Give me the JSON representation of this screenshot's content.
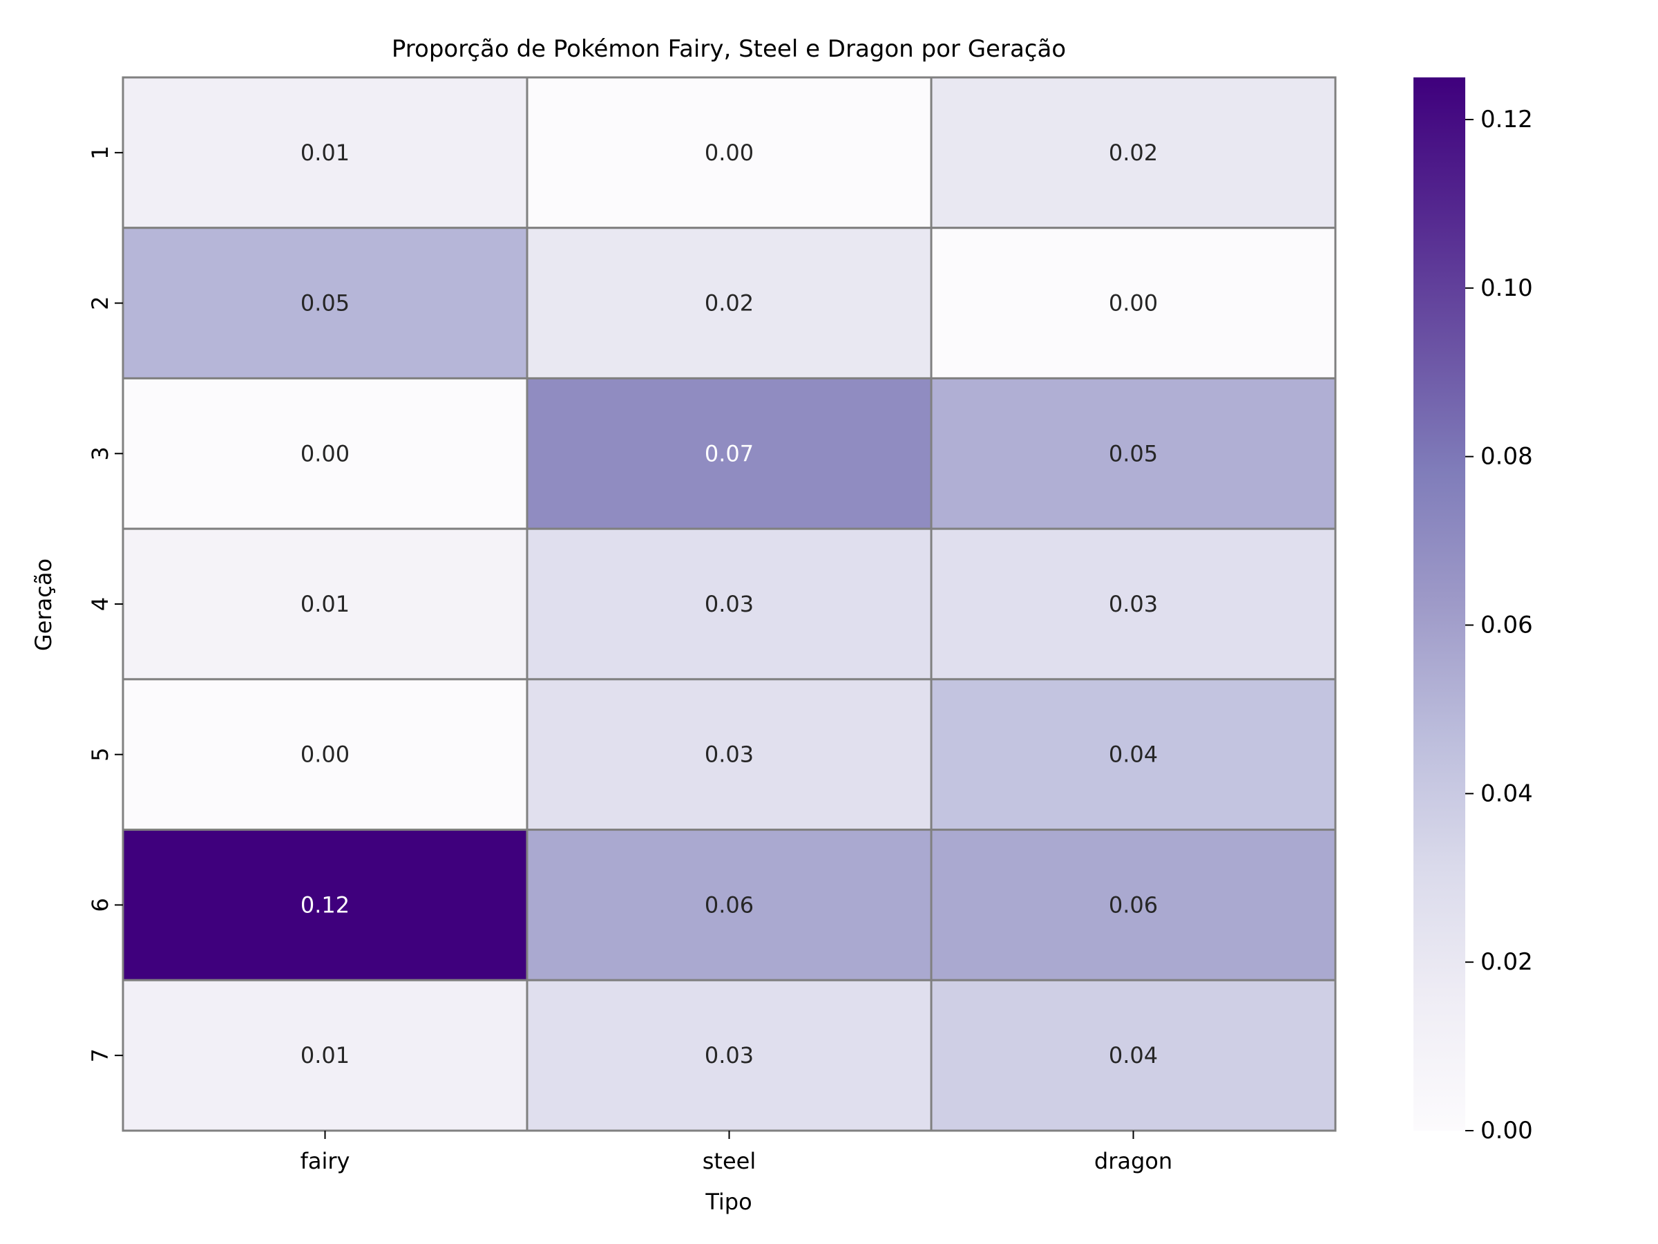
{
  "chart_data": {
    "type": "heatmap",
    "title": "Proporção de Pokémon Fairy, Steel e Dragon por Geração",
    "xlabel": "Tipo",
    "ylabel": "Geração",
    "x_categories": [
      "fairy",
      "steel",
      "dragon"
    ],
    "y_categories": [
      "1",
      "2",
      "3",
      "4",
      "5",
      "6",
      "7"
    ],
    "values": [
      [
        0.013,
        0.0,
        0.02
      ],
      [
        0.05,
        0.02,
        0.0
      ],
      [
        0.0,
        0.07,
        0.053
      ],
      [
        0.009,
        0.027,
        0.027
      ],
      [
        0.0,
        0.026,
        0.043
      ],
      [
        0.125,
        0.056,
        0.056
      ],
      [
        0.012,
        0.027,
        0.037
      ]
    ],
    "labels": [
      [
        "0.01",
        "0.00",
        "0.02"
      ],
      [
        "0.05",
        "0.02",
        "0.00"
      ],
      [
        "0.00",
        "0.07",
        "0.05"
      ],
      [
        "0.01",
        "0.03",
        "0.03"
      ],
      [
        "0.00",
        "0.03",
        "0.04"
      ],
      [
        "0.12",
        "0.06",
        "0.06"
      ],
      [
        "0.01",
        "0.03",
        "0.04"
      ]
    ],
    "colorbar": {
      "range": [
        0,
        0.125
      ],
      "ticks": [
        0.0,
        0.02,
        0.04,
        0.06,
        0.08,
        0.1,
        0.12
      ],
      "tick_labels": [
        "0.00",
        "0.02",
        "0.04",
        "0.06",
        "0.08",
        "0.10",
        "0.12"
      ]
    },
    "colormap": {
      "name": "Purples",
      "stops": [
        "#fcfbfd",
        "#efedf5",
        "#dadaeb",
        "#bcbddc",
        "#9e9ac8",
        "#807dba",
        "#6a51a3",
        "#54278f",
        "#3f007d"
      ]
    },
    "cell_border_color": "#808080",
    "text_color_light": "#ffffff",
    "text_color_dark": "#262626"
  }
}
